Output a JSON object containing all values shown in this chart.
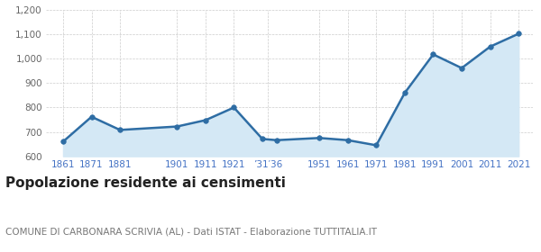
{
  "years": [
    1861,
    1871,
    1881,
    1901,
    1911,
    1921,
    1931,
    1936,
    1951,
    1961,
    1971,
    1981,
    1991,
    2001,
    2011,
    2021
  ],
  "population": [
    660,
    762,
    708,
    722,
    748,
    800,
    671,
    666,
    675,
    666,
    645,
    860,
    1018,
    962,
    1050,
    1103
  ],
  "x_tick_years": [
    1861,
    1871,
    1881,
    1901,
    1911,
    1921,
    1933,
    1951,
    1961,
    1971,
    1981,
    1991,
    2001,
    2011,
    2021
  ],
  "x_tick_labels": [
    "1861",
    "1871",
    "1881",
    "1901",
    "1911",
    "1921",
    "’31′36",
    "1951",
    "1961",
    "1971",
    "1981",
    "1991",
    "2001",
    "2011",
    "2021"
  ],
  "ylim": [
    600,
    1200
  ],
  "yticks": [
    600,
    700,
    800,
    900,
    1000,
    1100,
    1200
  ],
  "ytick_labels": [
    "600",
    "700",
    "800",
    "900",
    "1,000",
    "1,100",
    "1,200"
  ],
  "line_color": "#2e6da4",
  "fill_color": "#d4e8f5",
  "marker_color": "#2e6da4",
  "bg_color": "#ffffff",
  "grid_color": "#cccccc",
  "xtick_color": "#4472c4",
  "ytick_color": "#666666",
  "title": "Popolazione residente ai censimenti",
  "subtitle": "COMUNE DI CARBONARA SCRIVIA (AL) - Dati ISTAT - Elaborazione TUTTITALIA.IT",
  "title_fontsize": 11,
  "subtitle_fontsize": 7.5,
  "xlim_left": 1855,
  "xlim_right": 2026
}
